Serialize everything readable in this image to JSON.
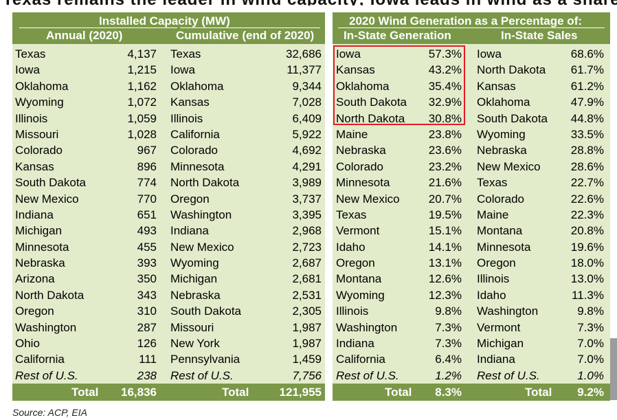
{
  "title": {
    "text": "Texas remains the leader in wind capacity; Iowa leads in wind as a share of generation",
    "accent_color": "#3e8e41"
  },
  "capacity_panel": {
    "title": "Installed Capacity (MW)",
    "annual_header": "Annual (2020)",
    "cumulative_header": "Cumulative (end of 2020)",
    "rows": [
      {
        "a_state": "Texas",
        "a_value": "4,137",
        "c_state": "Texas",
        "c_value": "32,686"
      },
      {
        "a_state": "Iowa",
        "a_value": "1,215",
        "c_state": "Iowa",
        "c_value": "11,377"
      },
      {
        "a_state": "Oklahoma",
        "a_value": "1,162",
        "c_state": "Oklahoma",
        "c_value": "9,344"
      },
      {
        "a_state": "Wyoming",
        "a_value": "1,072",
        "c_state": "Kansas",
        "c_value": "7,028"
      },
      {
        "a_state": "Illinois",
        "a_value": "1,059",
        "c_state": "Illinois",
        "c_value": "6,409"
      },
      {
        "a_state": "Missouri",
        "a_value": "1,028",
        "c_state": "California",
        "c_value": "5,922"
      },
      {
        "a_state": "Colorado",
        "a_value": "967",
        "c_state": "Colorado",
        "c_value": "4,692"
      },
      {
        "a_state": "Kansas",
        "a_value": "896",
        "c_state": "Minnesota",
        "c_value": "4,291"
      },
      {
        "a_state": "South Dakota",
        "a_value": "774",
        "c_state": "North Dakota",
        "c_value": "3,989"
      },
      {
        "a_state": "New Mexico",
        "a_value": "770",
        "c_state": "Oregon",
        "c_value": "3,737"
      },
      {
        "a_state": "Indiana",
        "a_value": "651",
        "c_state": "Washington",
        "c_value": "3,395"
      },
      {
        "a_state": "Michigan",
        "a_value": "493",
        "c_state": "Indiana",
        "c_value": "2,968"
      },
      {
        "a_state": "Minnesota",
        "a_value": "455",
        "c_state": "New Mexico",
        "c_value": "2,723"
      },
      {
        "a_state": "Nebraska",
        "a_value": "393",
        "c_state": "Wyoming",
        "c_value": "2,687"
      },
      {
        "a_state": "Arizona",
        "a_value": "350",
        "c_state": "Michigan",
        "c_value": "2,681"
      },
      {
        "a_state": "North Dakota",
        "a_value": "343",
        "c_state": "Nebraska",
        "c_value": "2,531"
      },
      {
        "a_state": "Oregon",
        "a_value": "310",
        "c_state": "South Dakota",
        "c_value": "2,305"
      },
      {
        "a_state": "Washington",
        "a_value": "287",
        "c_state": "Missouri",
        "c_value": "1,987"
      },
      {
        "a_state": "Ohio",
        "a_value": "126",
        "c_state": "New York",
        "c_value": "1,987"
      },
      {
        "a_state": "California",
        "a_value": "111",
        "c_state": "Pennsylvania",
        "c_value": "1,459"
      },
      {
        "a_state": "Rest of U.S.",
        "a_value": "238",
        "c_state": "Rest of U.S.",
        "c_value": "7,756"
      }
    ],
    "total_label": "Total",
    "annual_total": "16,836",
    "cumulative_total": "121,955"
  },
  "share_panel": {
    "title": "2020 Wind Generation as a Percentage of:",
    "gen_header": "In-State Generation",
    "sales_header": "In-State Sales",
    "rows": [
      {
        "g_state": "Iowa",
        "g_value": "57.3%",
        "s_state": "Iowa",
        "s_value": "68.6%"
      },
      {
        "g_state": "Kansas",
        "g_value": "43.2%",
        "s_state": "North Dakota",
        "s_value": "61.7%"
      },
      {
        "g_state": "Oklahoma",
        "g_value": "35.4%",
        "s_state": "Kansas",
        "s_value": "61.2%"
      },
      {
        "g_state": "South Dakota",
        "g_value": "32.9%",
        "s_state": "Oklahoma",
        "s_value": "47.9%"
      },
      {
        "g_state": "North Dakota",
        "g_value": "30.8%",
        "s_state": "South Dakota",
        "s_value": "44.8%"
      },
      {
        "g_state": "Maine",
        "g_value": "23.8%",
        "s_state": "Wyoming",
        "s_value": "33.5%"
      },
      {
        "g_state": "Nebraska",
        "g_value": "23.6%",
        "s_state": "Nebraska",
        "s_value": "28.8%"
      },
      {
        "g_state": "Colorado",
        "g_value": "23.2%",
        "s_state": "New Mexico",
        "s_value": "28.6%"
      },
      {
        "g_state": "Minnesota",
        "g_value": "21.6%",
        "s_state": "Texas",
        "s_value": "22.7%"
      },
      {
        "g_state": "New Mexico",
        "g_value": "20.7%",
        "s_state": "Colorado",
        "s_value": "22.6%"
      },
      {
        "g_state": "Texas",
        "g_value": "19.5%",
        "s_state": "Maine",
        "s_value": "22.3%"
      },
      {
        "g_state": "Vermont",
        "g_value": "15.1%",
        "s_state": "Montana",
        "s_value": "20.8%"
      },
      {
        "g_state": "Idaho",
        "g_value": "14.1%",
        "s_state": "Minnesota",
        "s_value": "19.6%"
      },
      {
        "g_state": "Oregon",
        "g_value": "13.1%",
        "s_state": "Oregon",
        "s_value": "18.0%"
      },
      {
        "g_state": "Montana",
        "g_value": "12.6%",
        "s_state": "Illinois",
        "s_value": "13.0%"
      },
      {
        "g_state": "Wyoming",
        "g_value": "12.3%",
        "s_state": "Idaho",
        "s_value": "11.3%"
      },
      {
        "g_state": "Illinois",
        "g_value": "9.8%",
        "s_state": "Washington",
        "s_value": "9.8%"
      },
      {
        "g_state": "Washington",
        "g_value": "7.3%",
        "s_state": "Vermont",
        "s_value": "7.3%"
      },
      {
        "g_state": "Indiana",
        "g_value": "7.3%",
        "s_state": "Michigan",
        "s_value": "7.0%"
      },
      {
        "g_state": "California",
        "g_value": "6.4%",
        "s_state": "Indiana",
        "s_value": "7.0%"
      },
      {
        "g_state": "Rest of U.S.",
        "g_value": "1.2%",
        "s_state": "Rest of U.S.",
        "s_value": "1.0%"
      }
    ],
    "total_label": "Total",
    "gen_total": "8.3%",
    "sales_total": "9.2%",
    "highlight_color": "#e31e24"
  },
  "source": "Source: ACP, EIA",
  "colors": {
    "header_green": "#7a9848",
    "panel_tint": "#e2eccb"
  }
}
